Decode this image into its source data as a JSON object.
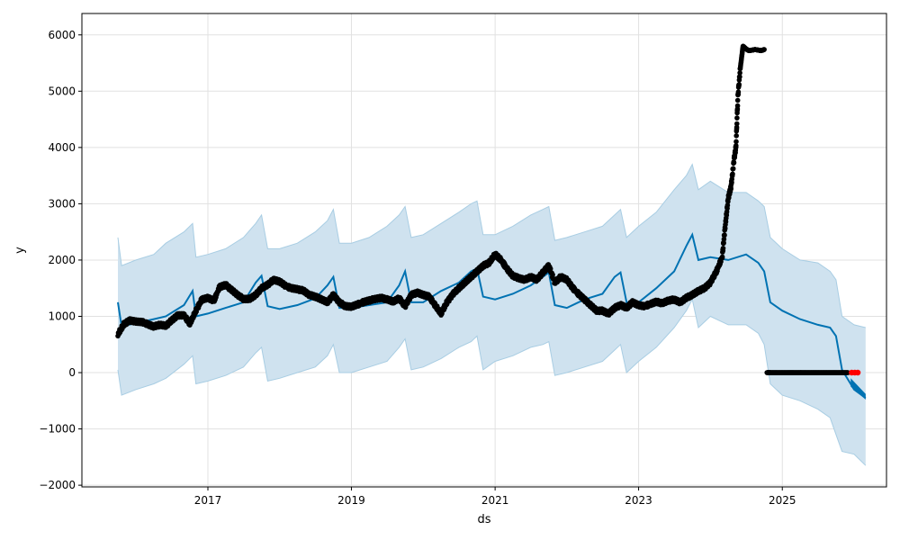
{
  "chart_data": {
    "type": "line",
    "title": "",
    "xlabel": "ds",
    "ylabel": "y",
    "xlim": [
      "2015-04-01",
      "2026-06-15"
    ],
    "ylim": [
      -2030,
      6380
    ],
    "x_ticks": [
      "2017",
      "2019",
      "2021",
      "2023",
      "2025"
    ],
    "y_ticks": [
      -2000,
      -1000,
      0,
      1000,
      2000,
      3000,
      4000,
      5000,
      6000
    ],
    "y_tick_labels": [
      "−2000",
      "−1000",
      "0",
      "1000",
      "2000",
      "3000",
      "4000",
      "5000",
      "6000"
    ],
    "grid": true,
    "legend": "none",
    "colors": {
      "observed": "#000000",
      "forecast_line": "#0072B2",
      "interval_fill": "#cfe2ef",
      "interval_edge": "#a8cde3",
      "highlight": "#ff0000",
      "grid": "#e1e1e1"
    },
    "series": [
      {
        "role": "observed",
        "x": [
          "2015-10-01",
          "2015-11-01",
          "2015-12-01",
          "2016-01-01",
          "2016-02-01",
          "2016-03-01",
          "2016-04-01",
          "2016-05-01",
          "2016-06-01",
          "2016-07-01",
          "2016-08-01",
          "2016-09-01",
          "2016-10-01",
          "2016-11-01",
          "2016-12-01",
          "2017-01-01",
          "2017-02-01",
          "2017-03-01",
          "2017-04-01",
          "2017-05-01",
          "2017-06-01",
          "2017-07-01",
          "2017-08-01",
          "2017-09-01",
          "2017-10-01",
          "2017-11-01",
          "2017-12-01",
          "2018-01-01",
          "2018-02-01",
          "2018-03-01",
          "2018-04-01",
          "2018-05-01",
          "2018-06-01",
          "2018-07-01",
          "2018-08-01",
          "2018-09-01",
          "2018-10-01",
          "2018-11-01",
          "2018-12-01",
          "2019-01-01",
          "2019-02-01",
          "2019-03-01",
          "2019-04-01",
          "2019-05-01",
          "2019-06-01",
          "2019-07-01",
          "2019-08-01",
          "2019-09-01",
          "2019-10-01",
          "2019-11-01",
          "2019-12-01",
          "2020-01-01",
          "2020-02-01",
          "2020-03-01",
          "2020-04-01",
          "2020-05-01",
          "2020-06-01",
          "2020-07-01",
          "2020-08-01",
          "2020-09-01",
          "2020-10-01",
          "2020-11-01",
          "2020-12-01",
          "2021-01-01",
          "2021-02-01",
          "2021-03-01",
          "2021-04-01",
          "2021-05-01",
          "2021-06-01",
          "2021-07-01",
          "2021-08-01",
          "2021-09-01",
          "2021-10-01",
          "2021-11-01",
          "2021-12-01",
          "2022-01-01",
          "2022-02-01",
          "2022-03-01",
          "2022-04-01",
          "2022-05-01",
          "2022-06-01",
          "2022-07-01",
          "2022-08-01",
          "2022-09-01",
          "2022-10-01",
          "2022-11-01",
          "2022-12-01",
          "2023-01-01",
          "2023-02-01",
          "2023-03-01",
          "2023-04-01",
          "2023-05-01",
          "2023-06-01",
          "2023-07-01",
          "2023-08-01",
          "2023-09-01",
          "2023-10-01",
          "2023-11-01",
          "2023-12-01",
          "2024-01-01",
          "2024-02-01",
          "2024-03-01",
          "2024-03-15",
          "2024-04-01",
          "2024-04-15",
          "2024-05-01",
          "2024-05-10",
          "2024-05-20",
          "2024-06-01",
          "2024-06-15",
          "2024-07-01",
          "2024-07-15",
          "2024-08-01",
          "2024-08-15",
          "2024-09-01",
          "2024-09-15",
          "2024-10-01",
          "2024-10-15",
          "2024-11-01",
          "2024-12-01",
          "2025-01-01",
          "2025-02-01",
          "2025-03-01",
          "2025-04-01",
          "2025-05-01",
          "2025-06-01",
          "2025-07-01",
          "2025-08-01",
          "2025-09-01",
          "2025-10-01",
          "2025-11-01",
          "2025-12-01"
        ],
        "y": [
          680,
          860,
          930,
          910,
          900,
          860,
          820,
          850,
          830,
          930,
          1020,
          1020,
          870,
          1100,
          1300,
          1330,
          1280,
          1520,
          1560,
          1470,
          1380,
          1310,
          1310,
          1380,
          1500,
          1560,
          1650,
          1620,
          1540,
          1500,
          1480,
          1460,
          1380,
          1350,
          1300,
          1250,
          1380,
          1250,
          1180,
          1170,
          1210,
          1250,
          1280,
          1310,
          1330,
          1300,
          1260,
          1320,
          1180,
          1380,
          1420,
          1380,
          1350,
          1200,
          1050,
          1250,
          1400,
          1500,
          1600,
          1700,
          1800,
          1900,
          1950,
          2100,
          2000,
          1850,
          1720,
          1680,
          1650,
          1700,
          1650,
          1780,
          1900,
          1600,
          1700,
          1650,
          1500,
          1400,
          1300,
          1200,
          1100,
          1100,
          1050,
          1150,
          1200,
          1150,
          1250,
          1200,
          1180,
          1220,
          1260,
          1230,
          1280,
          1300,
          1250,
          1330,
          1380,
          1450,
          1500,
          1600,
          1800,
          2050,
          2550,
          3100,
          3300,
          3800,
          4000,
          4900,
          5400,
          5800,
          5750,
          5720,
          5730,
          5740,
          5730,
          5720,
          5740,
          0,
          0,
          0,
          0,
          0,
          0,
          0,
          0,
          0,
          0,
          0,
          0,
          0,
          0,
          0
        ]
      },
      {
        "role": "forecast",
        "x": [
          "2015-10-01",
          "2015-10-20",
          "2016-01-01",
          "2016-04-01",
          "2016-06-01",
          "2016-09-01",
          "2016-10-15",
          "2016-11-01",
          "2017-01-01",
          "2017-04-01",
          "2017-07-01",
          "2017-09-01",
          "2017-10-01",
          "2017-11-01",
          "2018-01-01",
          "2018-04-01",
          "2018-07-01",
          "2018-09-01",
          "2018-10-01",
          "2018-11-01",
          "2019-01-01",
          "2019-04-01",
          "2019-07-01",
          "2019-09-01",
          "2019-10-01",
          "2019-11-01",
          "2020-01-01",
          "2020-04-01",
          "2020-07-01",
          "2020-09-01",
          "2020-10-01",
          "2020-11-01",
          "2021-01-01",
          "2021-04-01",
          "2021-07-01",
          "2021-09-01",
          "2021-10-01",
          "2021-11-01",
          "2022-01-01",
          "2022-04-01",
          "2022-07-01",
          "2022-09-01",
          "2022-10-01",
          "2022-11-01",
          "2023-01-01",
          "2023-04-01",
          "2023-07-01",
          "2023-09-01",
          "2023-10-01",
          "2023-11-01",
          "2024-01-01",
          "2024-04-01",
          "2024-07-01",
          "2024-09-01",
          "2024-10-01",
          "2024-11-01",
          "2025-01-01",
          "2025-04-01",
          "2025-07-01",
          "2025-09-01",
          "2025-10-01",
          "2025-11-01",
          "2026-01-01",
          "2026-03-01"
        ],
        "y": [
          1250,
          820,
          880,
          950,
          1000,
          1200,
          1450,
          1000,
          1050,
          1150,
          1250,
          1600,
          1720,
          1180,
          1130,
          1200,
          1320,
          1550,
          1700,
          1150,
          1150,
          1200,
          1250,
          1550,
          1800,
          1250,
          1250,
          1450,
          1600,
          1800,
          1850,
          1350,
          1300,
          1400,
          1550,
          1700,
          1780,
          1200,
          1150,
          1300,
          1400,
          1700,
          1780,
          1250,
          1250,
          1500,
          1800,
          2250,
          2450,
          2000,
          2050,
          2000,
          2100,
          1950,
          1800,
          1250,
          1100,
          950,
          850,
          800,
          650,
          50,
          -300,
          -450
        ]
      },
      {
        "role": "upper_bound",
        "x": [
          "2015-10-01",
          "2015-10-20",
          "2016-01-01",
          "2016-04-01",
          "2016-06-01",
          "2016-09-01",
          "2016-10-15",
          "2016-11-01",
          "2017-01-01",
          "2017-04-01",
          "2017-07-01",
          "2017-09-01",
          "2017-10-01",
          "2017-11-01",
          "2018-01-01",
          "2018-04-01",
          "2018-07-01",
          "2018-09-01",
          "2018-10-01",
          "2018-11-01",
          "2019-01-01",
          "2019-04-01",
          "2019-07-01",
          "2019-09-01",
          "2019-10-01",
          "2019-11-01",
          "2020-01-01",
          "2020-04-01",
          "2020-07-01",
          "2020-09-01",
          "2020-10-01",
          "2020-11-01",
          "2021-01-01",
          "2021-04-01",
          "2021-07-01",
          "2021-09-01",
          "2021-10-01",
          "2021-11-01",
          "2022-01-01",
          "2022-04-01",
          "2022-07-01",
          "2022-09-01",
          "2022-10-01",
          "2022-11-01",
          "2023-01-01",
          "2023-04-01",
          "2023-07-01",
          "2023-09-01",
          "2023-10-01",
          "2023-11-01",
          "2024-01-01",
          "2024-04-01",
          "2024-07-01",
          "2024-09-01",
          "2024-10-01",
          "2024-11-01",
          "2025-01-01",
          "2025-04-01",
          "2025-07-01",
          "2025-09-01",
          "2025-10-01",
          "2025-11-01",
          "2026-01-01",
          "2026-03-01"
        ],
        "y": [
          2400,
          1900,
          2000,
          2100,
          2300,
          2500,
          2650,
          2050,
          2100,
          2200,
          2400,
          2650,
          2800,
          2200,
          2200,
          2300,
          2500,
          2700,
          2900,
          2300,
          2300,
          2400,
          2600,
          2800,
          2950,
          2400,
          2450,
          2650,
          2850,
          3000,
          3050,
          2450,
          2450,
          2600,
          2800,
          2900,
          2950,
          2350,
          2400,
          2500,
          2600,
          2800,
          2900,
          2400,
          2600,
          2850,
          3250,
          3500,
          3700,
          3250,
          3400,
          3200,
          3200,
          3050,
          2950,
          2400,
          2200,
          2000,
          1950,
          1800,
          1650,
          1000,
          850,
          800
        ]
      },
      {
        "role": "lower_bound",
        "x": [
          "2015-10-01",
          "2015-10-20",
          "2016-01-01",
          "2016-04-01",
          "2016-06-01",
          "2016-09-01",
          "2016-10-15",
          "2016-11-01",
          "2017-01-01",
          "2017-04-01",
          "2017-07-01",
          "2017-09-01",
          "2017-10-01",
          "2017-11-01",
          "2018-01-01",
          "2018-04-01",
          "2018-07-01",
          "2018-09-01",
          "2018-10-01",
          "2018-11-01",
          "2019-01-01",
          "2019-04-01",
          "2019-07-01",
          "2019-09-01",
          "2019-10-01",
          "2019-11-01",
          "2020-01-01",
          "2020-04-01",
          "2020-07-01",
          "2020-09-01",
          "2020-10-01",
          "2020-11-01",
          "2021-01-01",
          "2021-04-01",
          "2021-07-01",
          "2021-09-01",
          "2021-10-01",
          "2021-11-01",
          "2022-01-01",
          "2022-04-01",
          "2022-07-01",
          "2022-09-01",
          "2022-10-01",
          "2022-11-01",
          "2023-01-01",
          "2023-04-01",
          "2023-07-01",
          "2023-09-01",
          "2023-10-01",
          "2023-11-01",
          "2024-01-01",
          "2024-04-01",
          "2024-07-01",
          "2024-09-01",
          "2024-10-01",
          "2024-11-01",
          "2025-01-01",
          "2025-04-01",
          "2025-07-01",
          "2025-09-01",
          "2025-10-01",
          "2025-11-01",
          "2026-01-01",
          "2026-03-01"
        ],
        "y": [
          50,
          -400,
          -300,
          -200,
          -100,
          150,
          300,
          -200,
          -150,
          -50,
          100,
          350,
          450,
          -150,
          -100,
          0,
          100,
          300,
          500,
          0,
          0,
          100,
          200,
          450,
          600,
          50,
          100,
          250,
          450,
          550,
          650,
          50,
          200,
          300,
          450,
          500,
          550,
          -50,
          0,
          100,
          200,
          400,
          500,
          0,
          200,
          450,
          800,
          1100,
          1300,
          800,
          1000,
          850,
          850,
          700,
          500,
          -200,
          -400,
          -500,
          -650,
          -800,
          -1100,
          -1400,
          -1450,
          -1650
        ]
      }
    ],
    "highlight_points": {
      "x": [
        "2025-12-20",
        "2026-01-05",
        "2026-01-20"
      ],
      "y": [
        0,
        0,
        0
      ]
    },
    "forecast_tail": {
      "x": [
        "2025-12-15",
        "2026-03-01"
      ],
      "y_high": [
        -100,
        -380
      ],
      "y_low": [
        -250,
        -480
      ]
    }
  }
}
